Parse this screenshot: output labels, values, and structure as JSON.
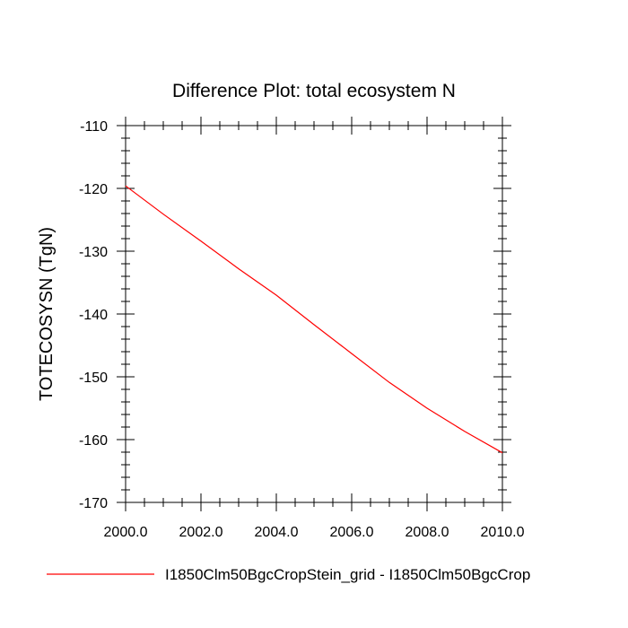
{
  "chart_data": {
    "type": "line",
    "title": "Difference Plot: total ecosystem N",
    "xlabel": "",
    "ylabel": "TOTECOSYSN  (TgN)",
    "xlim": [
      2000,
      2010
    ],
    "ylim": [
      -170,
      -110
    ],
    "x_ticks": [
      2000,
      2002,
      2004,
      2006,
      2008,
      2010
    ],
    "x_tick_labels": [
      "2000.0",
      "2002.0",
      "2004.0",
      "2006.0",
      "2008.0",
      "2010.0"
    ],
    "y_ticks": [
      -110,
      -120,
      -130,
      -140,
      -150,
      -160,
      -170
    ],
    "y_tick_labels": [
      "-110",
      "-120",
      "-130",
      "-140",
      "-150",
      "-160",
      "-170"
    ],
    "grid": false,
    "legend_position": "bottom",
    "series": [
      {
        "name": "I1850Clm50BgcCropStein_grid - I1850Clm50BgcCrop",
        "color": "#ff0000",
        "x": [
          2000,
          2001,
          2002,
          2003,
          2004,
          2005,
          2006,
          2007,
          2008,
          2009,
          2010
        ],
        "y": [
          -119.6,
          -124.1,
          -128.4,
          -132.8,
          -137.0,
          -141.7,
          -146.3,
          -150.9,
          -155.0,
          -158.7,
          -162.1
        ]
      }
    ]
  }
}
